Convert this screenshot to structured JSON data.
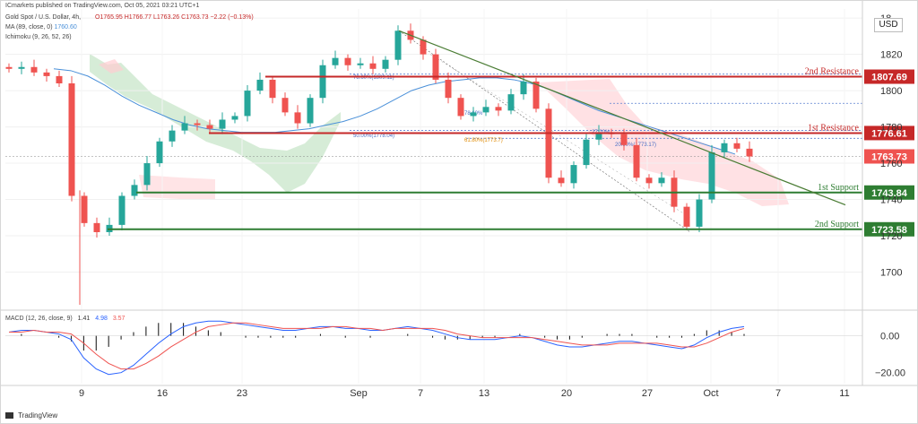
{
  "header": {
    "publisher": "ICmarkets published on TradingView.com, Oct 05, 2021 03:21 UTC+1",
    "instrument": "Gold Spot / U.S. Dollar, 4h,",
    "ohlc": "O1765.95  H1766.77  L1763.26  C1763.73  −2.22 (−0.13%)",
    "ma_label": "MA (89, close, 0)",
    "ma_value": "1760.60",
    "ichimoku_label": "Ichimoku (9, 26, 52, 26)"
  },
  "currency": "USD",
  "footer": {
    "brand": "TradingView"
  },
  "colors": {
    "up": "#26a69a",
    "down": "#ef5350",
    "resistance": "#c62828",
    "support": "#2e7d32",
    "trendline": "#4a7c34",
    "ma": "#4a90d9",
    "cloud_green": "#c8e6c9",
    "cloud_red": "#ffcdd2",
    "macd_line": "#2962ff",
    "signal_line": "#ef5350"
  },
  "chart_data": [
    {
      "type": "candlestick",
      "ylim": [
        1680,
        1845
      ],
      "y_ticks": [
        1700.0,
        1720.0,
        1740.0,
        1760.0,
        1780.0,
        1800.0,
        1820.0,
        "18"
      ],
      "x_ticks": [
        "9",
        "16",
        "23",
        "Sep",
        "7",
        "13",
        "20",
        "27",
        "Oct",
        "7",
        "11"
      ],
      "close_path": [
        1812,
        1813,
        1810,
        1808,
        1804,
        1742,
        1727,
        1722,
        1726,
        1742,
        1748,
        1760,
        1772,
        1778,
        1782,
        1781,
        1779,
        1784,
        1786,
        1800,
        1806,
        1796,
        1788,
        1782,
        1796,
        1814,
        1818,
        1814,
        1815,
        1812,
        1817,
        1833,
        1828,
        1820,
        1806,
        1796,
        1786,
        1788,
        1791,
        1789,
        1798,
        1805,
        1790,
        1752,
        1749,
        1759,
        1773,
        1777,
        1776,
        1770,
        1752,
        1749,
        1752,
        1736,
        1725,
        1740,
        1766,
        1771,
        1768,
        1763.73
      ],
      "price_levels": [
        {
          "name": "2nd Resistance",
          "value": 1807.69,
          "value_label": "1807.69"
        },
        {
          "name": "1st Resistance",
          "value": 1776.61,
          "value_label": "1776.61"
        },
        {
          "name": "1st Support",
          "value": 1743.84,
          "value_label": "1743.84"
        },
        {
          "name": "2nd Support",
          "value": 1723.58,
          "value_label": "1723.58"
        }
      ],
      "current_price": {
        "value": 1763.73,
        "label": "1763.73"
      },
      "trendline": {
        "start": {
          "x": "Sep 6",
          "y": 1833
        },
        "end": {
          "x": "Oct 9",
          "y": 1737
        }
      },
      "fib_labels": [
        "78.60%(1809.11)",
        "78.60%",
        "50.00%(1778.04)",
        "61.80%(1773.7)",
        "27.20%",
        "20.00%(1773.17)"
      ],
      "indicators": [
        {
          "name": "MA (89, close, 0)",
          "last": 1760.6
        },
        {
          "name": "Ichimoku (9, 26, 52, 26)"
        }
      ]
    },
    {
      "type": "bar",
      "title": "MACD (12, 26, close, 9)",
      "last_values": [
        "1.41",
        "4.98",
        "3.57"
      ],
      "y_ticks": [
        "0.00",
        "−20.00"
      ],
      "ylim": [
        -26,
        12
      ],
      "macd": [
        2,
        3,
        3,
        2,
        1,
        -2,
        -12,
        -18,
        -21,
        -20,
        -16,
        -10,
        -4,
        1,
        5,
        7,
        8,
        8,
        7,
        6,
        5,
        4,
        3,
        3,
        4,
        5,
        5,
        4,
        4,
        3,
        3,
        4,
        5,
        4,
        3,
        1,
        -1,
        -2,
        -2,
        -2,
        -1,
        0,
        -1,
        -3,
        -5,
        -6,
        -6,
        -5,
        -4,
        -3,
        -3,
        -4,
        -5,
        -6,
        -7,
        -5,
        -1,
        2,
        4,
        5
      ],
      "signal": [
        2,
        2,
        3,
        2,
        2,
        1,
        -4,
        -10,
        -15,
        -18,
        -18,
        -15,
        -11,
        -6,
        -2,
        2,
        5,
        6,
        7,
        7,
        6,
        5,
        4,
        4,
        4,
        4,
        5,
        5,
        4,
        4,
        3,
        4,
        4,
        4,
        4,
        3,
        1,
        0,
        -1,
        -1,
        -1,
        -1,
        -1,
        -2,
        -3,
        -4,
        -5,
        -5,
        -5,
        -4,
        -4,
        -4,
        -4,
        -5,
        -6,
        -6,
        -4,
        -1,
        2,
        4
      ]
    }
  ]
}
